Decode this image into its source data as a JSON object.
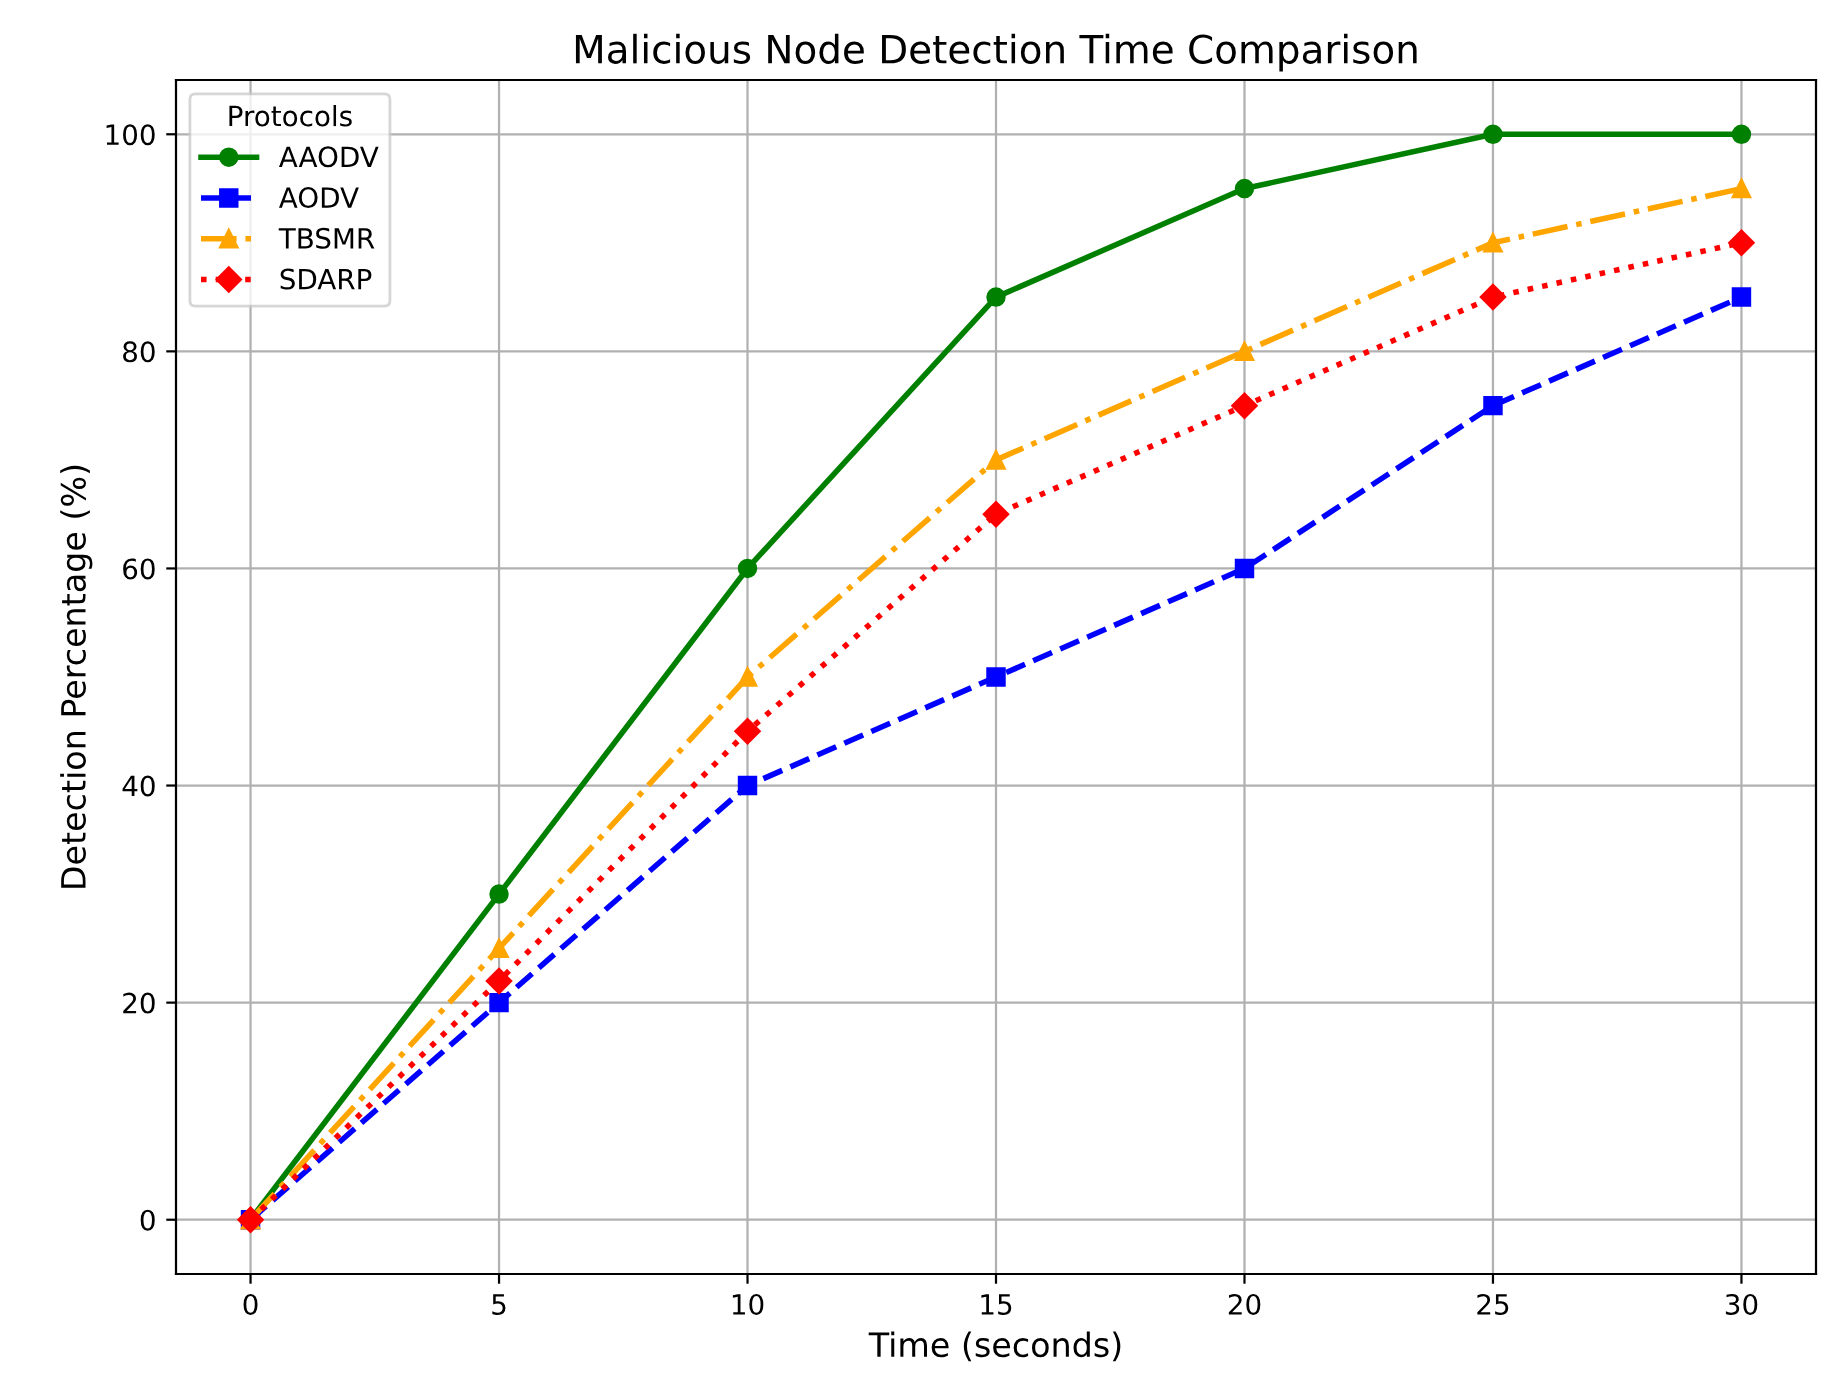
{
  "chart_data": {
    "type": "line",
    "title": "Malicious Node Detection Time Comparison",
    "xlabel": "Time (seconds)",
    "ylabel": "Detection Percentage (%)",
    "legend_title": "Protocols",
    "legend": "top left",
    "grid": true,
    "x": [
      0,
      5,
      10,
      15,
      20,
      25,
      30
    ],
    "series": [
      {
        "name": "AAODV",
        "color": "#008000",
        "marker": "circle",
        "line_style": "solid",
        "values": [
          0,
          30,
          60,
          85,
          95,
          100,
          100
        ]
      },
      {
        "name": "AODV",
        "color": "#0000ff",
        "marker": "square",
        "line_style": "dashed",
        "values": [
          0,
          20,
          40,
          50,
          60,
          75,
          85
        ]
      },
      {
        "name": "TBSMR",
        "color": "#ffa500",
        "marker": "triangle",
        "line_style": "dashdot",
        "values": [
          0,
          25,
          50,
          70,
          80,
          90,
          95
        ]
      },
      {
        "name": "SDARP",
        "color": "#ff0000",
        "marker": "diamond",
        "line_style": "dotted",
        "values": [
          0,
          22,
          45,
          65,
          75,
          85,
          90
        ]
      }
    ],
    "xlim": [
      -1.5,
      31.5
    ],
    "xticks": [
      0,
      5,
      10,
      15,
      20,
      25,
      30
    ],
    "ylim": [
      -5,
      105
    ],
    "yticks": [
      0,
      20,
      40,
      60,
      80,
      100
    ]
  }
}
